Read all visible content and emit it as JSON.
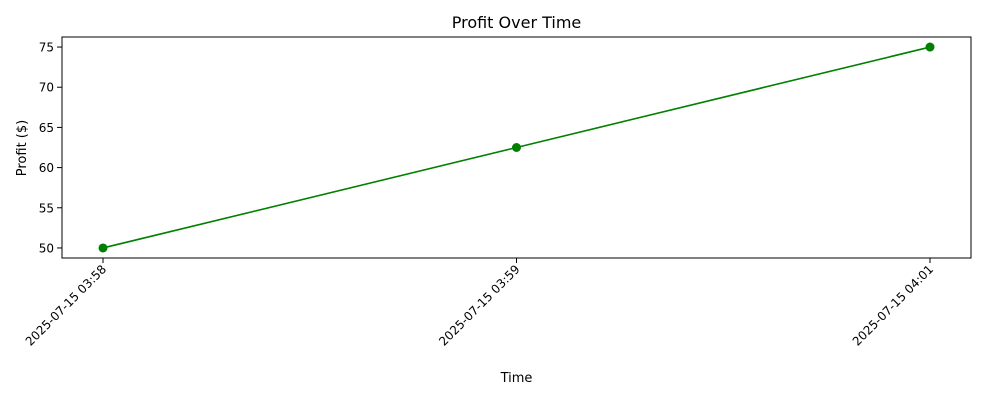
{
  "chart_data": {
    "type": "line",
    "title": "Profit Over Time",
    "xlabel": "Time",
    "ylabel": "Profit ($)",
    "categories": [
      "2025-07-15 03:58",
      "2025-07-15 03:59",
      "2025-07-15 04:01"
    ],
    "series": [
      {
        "values": [
          50,
          62.5,
          75
        ],
        "color": "#008000",
        "marker": "circle"
      }
    ],
    "yticks": [
      "50",
      "55",
      "60",
      "65",
      "70",
      "75"
    ],
    "ylim": [
      48.75,
      76.25
    ],
    "grid": false,
    "legend": "none"
  }
}
